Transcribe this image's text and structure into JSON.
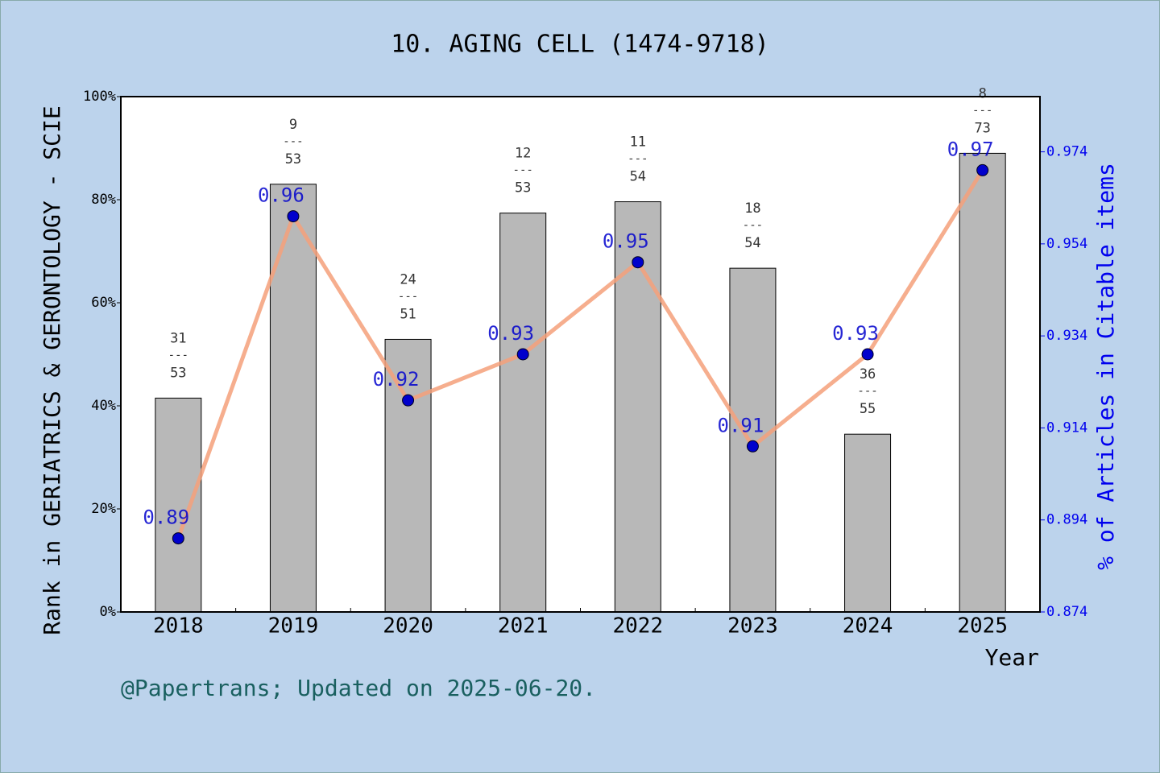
{
  "chart_data": {
    "type": "bar",
    "title": "10. AGING CELL (1474-9718)",
    "y_label": "Rank in GERIATRICS & GERONTOLOGY - SCIE",
    "y2_label": "% of Articles in Citable items",
    "x_label": "Year",
    "footnote": "@Papertrans; Updated on 2025-06-20.",
    "categories": [
      "2018",
      "2019",
      "2020",
      "2021",
      "2022",
      "2023",
      "2024",
      "2025"
    ],
    "series": [
      {
        "color": "#b8b8b8",
        "values": [
          41.5,
          83.0,
          52.9,
          77.4,
          79.6,
          66.7,
          34.5,
          89.0
        ]
      },
      {
        "type": "line",
        "axis": "y2",
        "color": "#f4a07a",
        "marker_color": "#0000cc",
        "values": [
          0.89,
          0.96,
          0.92,
          0.93,
          0.95,
          0.91,
          0.93,
          0.97
        ]
      }
    ],
    "ranks": [
      31,
      9,
      24,
      12,
      11,
      18,
      36,
      8
    ],
    "rank_separator": "---",
    "totals": [
      53,
      53,
      51,
      53,
      54,
      54,
      55,
      73
    ],
    "ylim": [
      0,
      100
    ],
    "yticks": [
      {
        "value": 0,
        "label": "0%"
      },
      {
        "value": 20,
        "label": "20%"
      },
      {
        "value": 40,
        "label": "40%"
      },
      {
        "value": 60,
        "label": "60%"
      },
      {
        "value": 80,
        "label": "80%"
      },
      {
        "value": 100,
        "label": "100%"
      }
    ],
    "y2lim": [
      0.874,
      0.986
    ],
    "y2ticks": [
      0.874,
      0.894,
      0.914,
      0.934,
      0.954,
      0.974
    ]
  }
}
